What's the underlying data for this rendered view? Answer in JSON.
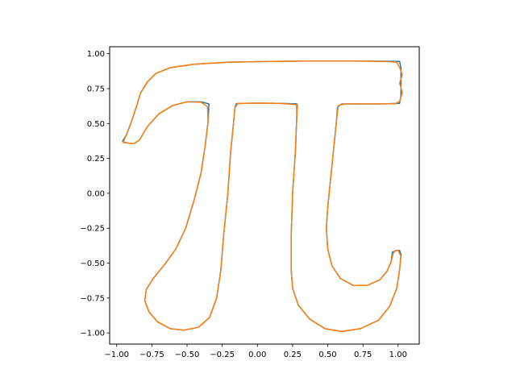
{
  "chart_data": {
    "type": "line",
    "title": "",
    "xlabel": "",
    "ylabel": "",
    "xlim": [
      -1.05,
      1.15
    ],
    "ylim": [
      -1.08,
      1.05
    ],
    "xticks": [
      -1.0,
      -0.75,
      -0.5,
      -0.25,
      0.0,
      0.25,
      0.5,
      0.75,
      1.0
    ],
    "xtick_labels": [
      "−1.00",
      "−0.75",
      "−0.50",
      "−0.25",
      "0.00",
      "0.25",
      "0.50",
      "0.75",
      "1.00"
    ],
    "yticks": [
      1.0,
      0.75,
      0.5,
      0.25,
      0.0,
      -0.25,
      -0.5,
      -0.75,
      -1.0
    ],
    "ytick_labels": [
      "1.00",
      "0.75",
      "0.50",
      "0.25",
      "0.00",
      "−0.25",
      "−0.50",
      "−0.75",
      "−1.00"
    ],
    "grid": false,
    "legend": null,
    "series": [
      {
        "color": "#1f77b4",
        "points": [
          [
            -0.96,
            0.37
          ],
          [
            -0.93,
            0.42
          ],
          [
            -0.9,
            0.5
          ],
          [
            -0.86,
            0.62
          ],
          [
            -0.83,
            0.72
          ],
          [
            -0.78,
            0.8
          ],
          [
            -0.72,
            0.86
          ],
          [
            -0.62,
            0.9
          ],
          [
            -0.45,
            0.925
          ],
          [
            -0.2,
            0.94
          ],
          [
            0.1,
            0.945
          ],
          [
            0.4,
            0.948
          ],
          [
            0.7,
            0.947
          ],
          [
            0.9,
            0.946
          ],
          [
            1.01,
            0.945
          ],
          [
            1.02,
            0.9
          ],
          [
            1.02,
            0.8
          ],
          [
            1.02,
            0.7
          ],
          [
            1.01,
            0.645
          ],
          [
            0.9,
            0.641
          ],
          [
            0.75,
            0.64
          ],
          [
            0.6,
            0.64
          ],
          [
            0.57,
            0.62
          ],
          [
            0.56,
            0.5
          ],
          [
            0.54,
            0.3
          ],
          [
            0.52,
            0.1
          ],
          [
            0.5,
            -0.1
          ],
          [
            0.49,
            -0.25
          ],
          [
            0.5,
            -0.4
          ],
          [
            0.53,
            -0.52
          ],
          [
            0.59,
            -0.61
          ],
          [
            0.68,
            -0.66
          ],
          [
            0.78,
            -0.66
          ],
          [
            0.87,
            -0.62
          ],
          [
            0.92,
            -0.56
          ],
          [
            0.95,
            -0.49
          ],
          [
            0.96,
            -0.42
          ],
          [
            0.99,
            -0.41
          ],
          [
            1.01,
            -0.41
          ],
          [
            1.02,
            -0.44
          ],
          [
            1.01,
            -0.55
          ],
          [
            0.99,
            -0.68
          ],
          [
            0.94,
            -0.81
          ],
          [
            0.86,
            -0.91
          ],
          [
            0.73,
            -0.97
          ],
          [
            0.6,
            -0.99
          ],
          [
            0.48,
            -0.97
          ],
          [
            0.37,
            -0.9
          ],
          [
            0.29,
            -0.8
          ],
          [
            0.25,
            -0.68
          ],
          [
            0.24,
            -0.55
          ],
          [
            0.24,
            -0.3
          ],
          [
            0.25,
            0.0
          ],
          [
            0.27,
            0.3
          ],
          [
            0.28,
            0.55
          ],
          [
            0.28,
            0.641
          ],
          [
            0.15,
            0.645
          ],
          [
            0.0,
            0.646
          ],
          [
            -0.1,
            0.645
          ],
          [
            -0.15,
            0.642
          ],
          [
            -0.16,
            0.61
          ],
          [
            -0.17,
            0.5
          ],
          [
            -0.19,
            0.3
          ],
          [
            -0.21,
            0.0
          ],
          [
            -0.24,
            -0.3
          ],
          [
            -0.26,
            -0.55
          ],
          [
            -0.29,
            -0.75
          ],
          [
            -0.34,
            -0.89
          ],
          [
            -0.42,
            -0.96
          ],
          [
            -0.52,
            -0.98
          ],
          [
            -0.62,
            -0.97
          ],
          [
            -0.71,
            -0.92
          ],
          [
            -0.77,
            -0.85
          ],
          [
            -0.8,
            -0.77
          ],
          [
            -0.79,
            -0.69
          ],
          [
            -0.74,
            -0.61
          ],
          [
            -0.66,
            -0.51
          ],
          [
            -0.58,
            -0.4
          ],
          [
            -0.51,
            -0.25
          ],
          [
            -0.45,
            -0.05
          ],
          [
            -0.4,
            0.15
          ],
          [
            -0.37,
            0.35
          ],
          [
            -0.35,
            0.52
          ],
          [
            -0.345,
            0.64
          ],
          [
            -0.4,
            0.655
          ],
          [
            -0.5,
            0.655
          ],
          [
            -0.6,
            0.63
          ],
          [
            -0.7,
            0.57
          ],
          [
            -0.78,
            0.48
          ],
          [
            -0.84,
            0.38
          ],
          [
            -0.88,
            0.355
          ],
          [
            -0.92,
            0.36
          ],
          [
            -0.96,
            0.37
          ]
        ]
      },
      {
        "color": "#ff7f0e",
        "points": [
          [
            -0.955,
            0.365
          ],
          [
            -0.93,
            0.42
          ],
          [
            -0.9,
            0.5
          ],
          [
            -0.86,
            0.62
          ],
          [
            -0.83,
            0.72
          ],
          [
            -0.78,
            0.8
          ],
          [
            -0.72,
            0.86
          ],
          [
            -0.62,
            0.9
          ],
          [
            -0.45,
            0.925
          ],
          [
            -0.2,
            0.94
          ],
          [
            0.1,
            0.945
          ],
          [
            0.4,
            0.948
          ],
          [
            0.7,
            0.947
          ],
          [
            0.9,
            0.945
          ],
          [
            0.99,
            0.94
          ],
          [
            1.01,
            0.9
          ],
          [
            1.03,
            0.85
          ],
          [
            1.01,
            0.79
          ],
          [
            1.03,
            0.72
          ],
          [
            1.01,
            0.66
          ],
          [
            0.98,
            0.642
          ],
          [
            0.9,
            0.641
          ],
          [
            0.75,
            0.64
          ],
          [
            0.62,
            0.64
          ],
          [
            0.575,
            0.63
          ],
          [
            0.56,
            0.5
          ],
          [
            0.54,
            0.3
          ],
          [
            0.52,
            0.1
          ],
          [
            0.5,
            -0.1
          ],
          [
            0.49,
            -0.25
          ],
          [
            0.5,
            -0.4
          ],
          [
            0.53,
            -0.52
          ],
          [
            0.59,
            -0.61
          ],
          [
            0.68,
            -0.66
          ],
          [
            0.78,
            -0.66
          ],
          [
            0.87,
            -0.62
          ],
          [
            0.92,
            -0.56
          ],
          [
            0.95,
            -0.49
          ],
          [
            0.965,
            -0.43
          ],
          [
            0.98,
            -0.41
          ],
          [
            1.0,
            -0.41
          ],
          [
            1.02,
            -0.45
          ],
          [
            1.01,
            -0.55
          ],
          [
            0.99,
            -0.68
          ],
          [
            0.94,
            -0.81
          ],
          [
            0.86,
            -0.91
          ],
          [
            0.73,
            -0.97
          ],
          [
            0.6,
            -0.99
          ],
          [
            0.48,
            -0.97
          ],
          [
            0.37,
            -0.9
          ],
          [
            0.29,
            -0.8
          ],
          [
            0.25,
            -0.68
          ],
          [
            0.24,
            -0.55
          ],
          [
            0.24,
            -0.3
          ],
          [
            0.25,
            0.0
          ],
          [
            0.27,
            0.3
          ],
          [
            0.28,
            0.55
          ],
          [
            0.285,
            0.635
          ],
          [
            0.15,
            0.645
          ],
          [
            0.0,
            0.646
          ],
          [
            -0.1,
            0.645
          ],
          [
            -0.14,
            0.644
          ],
          [
            -0.16,
            0.61
          ],
          [
            -0.17,
            0.5
          ],
          [
            -0.19,
            0.3
          ],
          [
            -0.21,
            0.0
          ],
          [
            -0.24,
            -0.3
          ],
          [
            -0.26,
            -0.55
          ],
          [
            -0.29,
            -0.75
          ],
          [
            -0.34,
            -0.89
          ],
          [
            -0.42,
            -0.96
          ],
          [
            -0.52,
            -0.98
          ],
          [
            -0.62,
            -0.97
          ],
          [
            -0.71,
            -0.92
          ],
          [
            -0.77,
            -0.85
          ],
          [
            -0.8,
            -0.77
          ],
          [
            -0.79,
            -0.69
          ],
          [
            -0.74,
            -0.61
          ],
          [
            -0.66,
            -0.51
          ],
          [
            -0.58,
            -0.4
          ],
          [
            -0.51,
            -0.25
          ],
          [
            -0.45,
            -0.05
          ],
          [
            -0.4,
            0.15
          ],
          [
            -0.37,
            0.35
          ],
          [
            -0.35,
            0.52
          ],
          [
            -0.355,
            0.62
          ],
          [
            -0.4,
            0.652
          ],
          [
            -0.5,
            0.655
          ],
          [
            -0.6,
            0.63
          ],
          [
            -0.7,
            0.57
          ],
          [
            -0.78,
            0.48
          ],
          [
            -0.84,
            0.38
          ],
          [
            -0.88,
            0.355
          ],
          [
            -0.92,
            0.36
          ],
          [
            -0.955,
            0.365
          ]
        ]
      }
    ]
  }
}
